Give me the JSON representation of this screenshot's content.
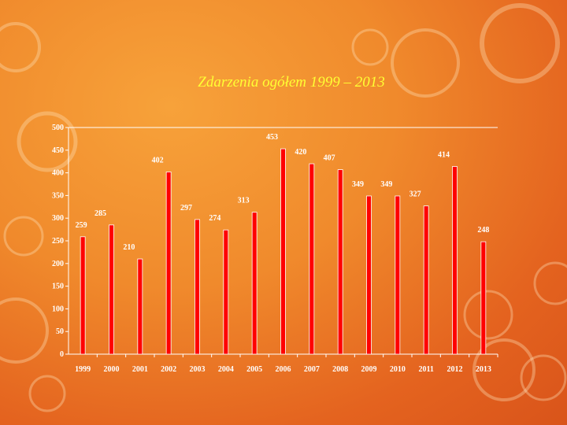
{
  "chart_data": {
    "type": "bar",
    "title": "Zdarzenia ogółem 1999 – 2013",
    "categories": [
      "1999",
      "2000",
      "2001",
      "2002",
      "2003",
      "2004",
      "2005",
      "2006",
      "2007",
      "2008",
      "2009",
      "2010",
      "2011",
      "2012",
      "2013"
    ],
    "values": [
      259,
      285,
      210,
      402,
      297,
      274,
      313,
      453,
      420,
      407,
      349,
      349,
      327,
      414,
      248
    ],
    "yticks": [
      "0",
      "50",
      "100",
      "150",
      "200",
      "250",
      "300",
      "350",
      "400",
      "450",
      "500"
    ],
    "ylim": [
      0,
      500
    ],
    "grid": false,
    "bar_color": "#ff0000",
    "title_color": "#ffff33"
  }
}
